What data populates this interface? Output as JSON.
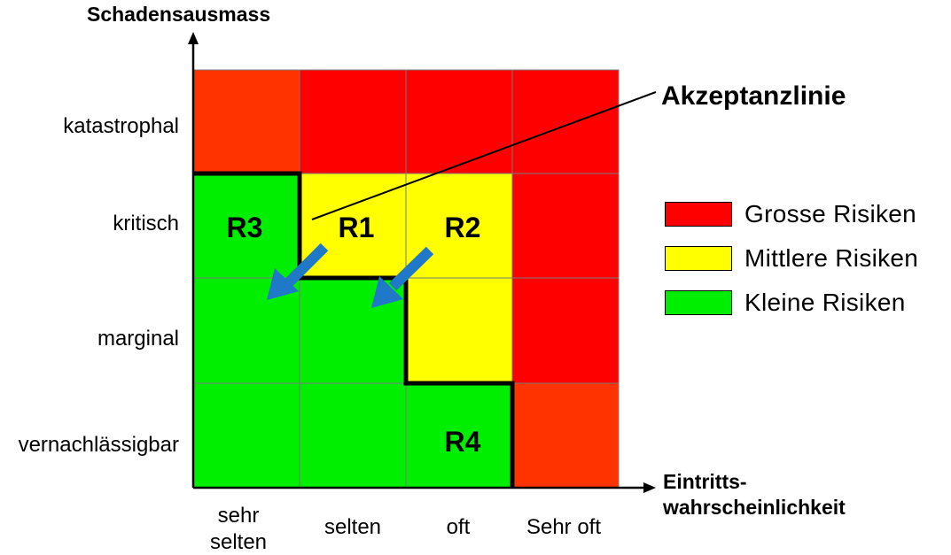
{
  "axes": {
    "y_title": "Schadensausmass",
    "x_title_line1": "Eintritts-",
    "x_title_line2": "wahrscheinlichkeit"
  },
  "rows": [
    "katastrophal",
    "kritisch",
    "marginal",
    "vernachlässigbar"
  ],
  "columns": [
    {
      "line1": "sehr",
      "line2": "selten"
    },
    {
      "line1": "selten",
      "line2": ""
    },
    {
      "line1": "oft",
      "line2": ""
    },
    {
      "line1": "Sehr oft",
      "line2": ""
    }
  ],
  "colors": {
    "red": "#ff0000",
    "orange_red": "#ff3300",
    "yellow": "#ffff00",
    "green": "#00ee00",
    "arrow": "#1f78c8"
  },
  "cell_colors": [
    [
      "orange_red",
      "red",
      "red",
      "red"
    ],
    [
      "green",
      "yellow",
      "yellow",
      "red"
    ],
    [
      "green",
      "green",
      "yellow",
      "red"
    ],
    [
      "green",
      "green",
      "green",
      "orange_red"
    ]
  ],
  "risk_labels": {
    "r1": "R1",
    "r2": "R2",
    "r3": "R3",
    "r4": "R4"
  },
  "annotation": "Akzeptanzlinie",
  "legend": [
    {
      "label": "Grosse Risiken",
      "color": "#ff0000"
    },
    {
      "label": "Mittlere Risiken",
      "color": "#ffff00"
    },
    {
      "label": "Kleine Risiken",
      "color": "#00ee00"
    }
  ]
}
